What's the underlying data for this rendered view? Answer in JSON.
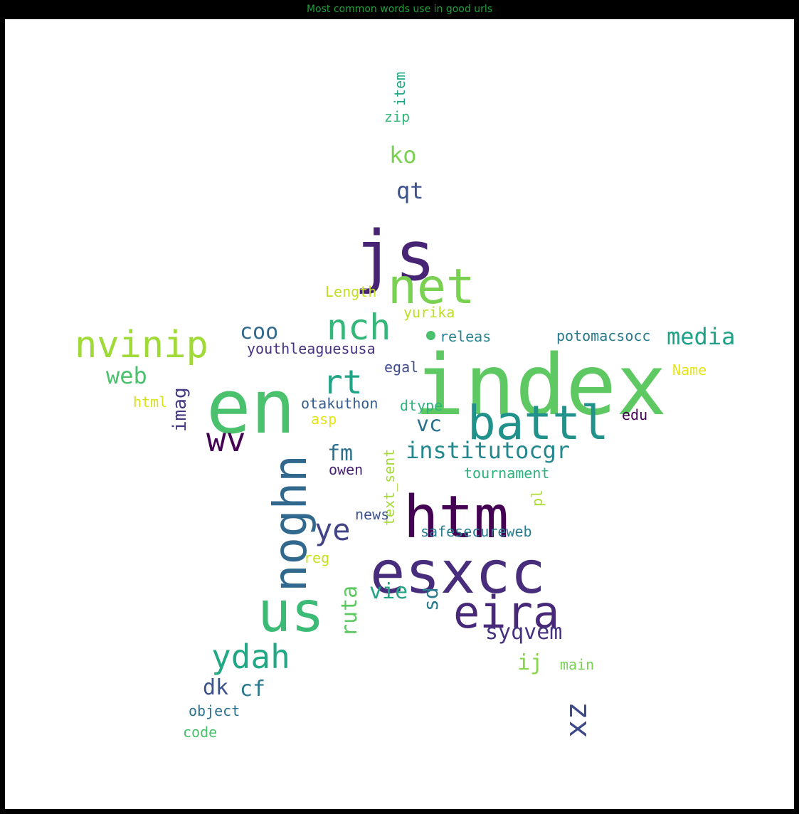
{
  "title": "Most common words use in good urls",
  "colors": {
    "background": "#000000",
    "canvas": "#ffffff",
    "title": "#1f9e3a"
  },
  "chart_data": {
    "type": "wordcloud",
    "title": "Most common words use in good urls",
    "words": [
      {
        "text": "index",
        "color": "#5ec962",
        "vertical": false
      },
      {
        "text": "en",
        "color": "#4ac16d",
        "vertical": false
      },
      {
        "text": "js",
        "color": "#482475",
        "vertical": false
      },
      {
        "text": "htm",
        "color": "#440154",
        "vertical": false
      },
      {
        "text": "esxcc",
        "color": "#472d7b",
        "vertical": false
      },
      {
        "text": "us",
        "color": "#3bbb75",
        "vertical": false
      },
      {
        "text": "net",
        "color": "#7ad151",
        "vertical": false
      },
      {
        "text": "battl",
        "color": "#21918c",
        "vertical": false
      },
      {
        "text": "noghn",
        "color": "#31688e",
        "vertical": true
      },
      {
        "text": "eira",
        "color": "#482878",
        "vertical": false
      },
      {
        "text": "nvinip",
        "color": "#a0da39",
        "vertical": false
      },
      {
        "text": "nch",
        "color": "#35b779",
        "vertical": false
      },
      {
        "text": "ydah",
        "color": "#22a884",
        "vertical": false
      },
      {
        "text": "rt",
        "color": "#20a486",
        "vertical": false
      },
      {
        "text": "wv",
        "color": "#440154",
        "vertical": false
      },
      {
        "text": "ye",
        "color": "#414487",
        "vertical": false
      },
      {
        "text": "xz",
        "color": "#3e4a89",
        "vertical": true
      },
      {
        "text": "media",
        "color": "#1fa187",
        "vertical": false
      },
      {
        "text": "institutocgr",
        "color": "#23888e",
        "vertical": false
      },
      {
        "text": "ko",
        "color": "#7ad151",
        "vertical": false
      },
      {
        "text": "qt",
        "color": "#3b528b",
        "vertical": false
      },
      {
        "text": "web",
        "color": "#4ac16d",
        "vertical": false
      },
      {
        "text": "coo",
        "color": "#31688e",
        "vertical": false
      },
      {
        "text": "syqvem",
        "color": "#46327e",
        "vertical": false
      },
      {
        "text": "vc",
        "color": "#2c728e",
        "vertical": false
      },
      {
        "text": "ruta",
        "color": "#5ec962",
        "vertical": true
      },
      {
        "text": "vie",
        "color": "#20a486",
        "vertical": false
      },
      {
        "text": "sd",
        "color": "#287c8e",
        "vertical": true
      },
      {
        "text": "fm",
        "color": "#2c728e",
        "vertical": false
      },
      {
        "text": "dk",
        "color": "#3b528b",
        "vertical": false
      },
      {
        "text": "cf",
        "color": "#2a788e",
        "vertical": false
      },
      {
        "text": "ij",
        "color": "#86d549",
        "vertical": false
      },
      {
        "text": "imag",
        "color": "#443983",
        "vertical": true
      },
      {
        "text": "youthleaguesusa",
        "color": "#46327e",
        "vertical": false
      },
      {
        "text": "potomacsocc",
        "color": "#2a788e",
        "vertical": false
      },
      {
        "text": "releas",
        "color": "#26828e",
        "vertical": false
      },
      {
        "text": "Length",
        "color": "#c2df23",
        "vertical": false
      },
      {
        "text": "yurika",
        "color": "#bddf26",
        "vertical": false
      },
      {
        "text": "egal",
        "color": "#3e4a89",
        "vertical": false
      },
      {
        "text": "Name",
        "color": "#e5e419",
        "vertical": false
      },
      {
        "text": "html",
        "color": "#d8e219",
        "vertical": false
      },
      {
        "text": "otakuthon",
        "color": "#365c8d",
        "vertical": false
      },
      {
        "text": "dtype",
        "color": "#2db27d",
        "vertical": false
      },
      {
        "text": "edu",
        "color": "#440154",
        "vertical": false
      },
      {
        "text": "asp",
        "color": "#e5e419",
        "vertical": false
      },
      {
        "text": "owen",
        "color": "#482173",
        "vertical": false
      },
      {
        "text": "text_sent",
        "color": "#a5db36",
        "vertical": true
      },
      {
        "text": "tournament",
        "color": "#2db27d",
        "vertical": false
      },
      {
        "text": "pl",
        "color": "#addc30",
        "vertical": true
      },
      {
        "text": "news",
        "color": "#3b528b",
        "vertical": false
      },
      {
        "text": "safesecureweb",
        "color": "#287c8e",
        "vertical": false
      },
      {
        "text": "reg",
        "color": "#c8e020",
        "vertical": false
      },
      {
        "text": "main",
        "color": "#7ad151",
        "vertical": false
      },
      {
        "text": "object",
        "color": "#2c728e",
        "vertical": false
      },
      {
        "text": "code",
        "color": "#4ac16d",
        "vertical": false
      },
      {
        "text": "zip",
        "color": "#35b779",
        "vertical": false
      },
      {
        "text": "item",
        "color": "#22a884",
        "vertical": true
      }
    ]
  }
}
